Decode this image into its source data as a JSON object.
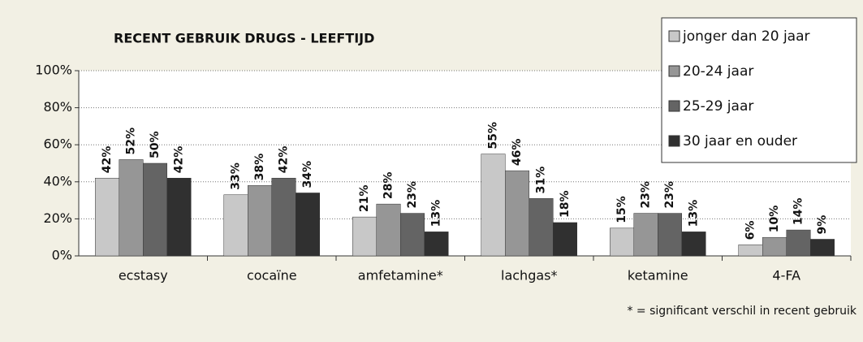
{
  "chart_data": {
    "type": "bar",
    "title": "RECENT GEBRUIK DRUGS - LEEFTIJD",
    "categories": [
      "ecstasy",
      "cocaïne",
      "amfetamine*",
      "lachgas*",
      "ketamine",
      "4-FA"
    ],
    "series": [
      {
        "name": "jonger dan 20 jaar",
        "color": "#c8c8c8",
        "values": [
          42,
          33,
          21,
          55,
          15,
          6
        ],
        "value_labels": [
          "42%",
          "33%",
          "21%",
          "55%",
          "15%",
          "6%"
        ]
      },
      {
        "name": "20-24 jaar",
        "color": "#969696",
        "values": [
          52,
          38,
          28,
          46,
          23,
          10
        ],
        "value_labels": [
          "52%",
          "38%",
          "28%",
          "46%",
          "23%",
          "10%"
        ]
      },
      {
        "name": "25-29 jaar",
        "color": "#646464",
        "values": [
          50,
          42,
          23,
          31,
          23,
          14
        ],
        "value_labels": [
          "50%",
          "42%",
          "23%",
          "31%",
          "23%",
          "14%"
        ]
      },
      {
        "name": "30 jaar en ouder",
        "color": "#303030",
        "values": [
          42,
          34,
          13,
          18,
          13,
          9
        ],
        "value_labels": [
          "42%",
          "34%",
          "13%",
          "18%",
          "13%",
          "9%"
        ]
      }
    ],
    "ylim": [
      0,
      100
    ],
    "yticks": [
      {
        "value": 0,
        "label": "0%"
      },
      {
        "value": 20,
        "label": "20%"
      },
      {
        "value": 40,
        "label": "40%"
      },
      {
        "value": 60,
        "label": "60%"
      },
      {
        "value": 80,
        "label": "80%"
      },
      {
        "value": 100,
        "label": "100%"
      }
    ],
    "grid": true,
    "legend": "top-right",
    "annotation": "* = significant verschil in recent gebruik"
  }
}
